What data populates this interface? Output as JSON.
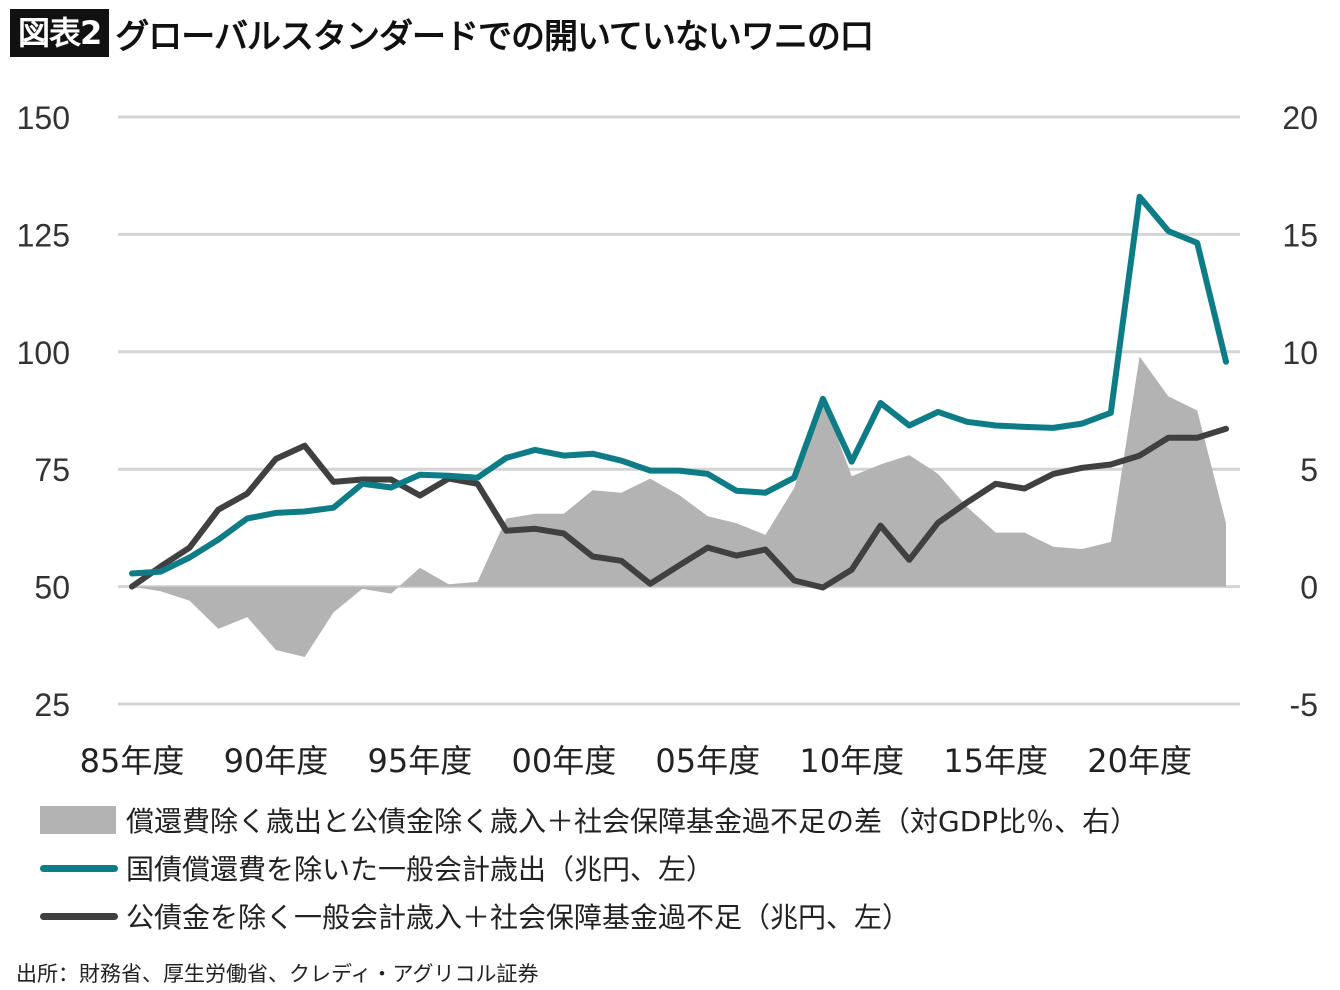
{
  "header": {
    "badge": "図表2",
    "title": "グローバルスタンダードでの開いていないワニの口"
  },
  "colors": {
    "expenditure": "#0e7c86",
    "revenue": "#404040",
    "gap": "#b3b3b3",
    "grid": "#d4d4d4",
    "negative_tick": "#e02020"
  },
  "chart_data": {
    "type": "line+area",
    "title": "グローバルスタンダードでの開いていないワニの口",
    "x": [
      1985,
      1986,
      1987,
      1988,
      1989,
      1990,
      1991,
      1992,
      1993,
      1994,
      1995,
      1996,
      1997,
      1998,
      1999,
      2000,
      2001,
      2002,
      2003,
      2004,
      2005,
      2006,
      2007,
      2008,
      2009,
      2010,
      2011,
      2012,
      2013,
      2014,
      2015,
      2016,
      2017,
      2018,
      2019,
      2020,
      2021,
      2022,
      2023
    ],
    "x_tick_values": [
      1985,
      1990,
      1995,
      2000,
      2005,
      2010,
      2015,
      2020
    ],
    "x_tick_labels": [
      "85年度",
      "90年度",
      "95年度",
      "00年度",
      "05年度",
      "10年度",
      "15年度",
      "20年度"
    ],
    "y_left": {
      "range": [
        25,
        150
      ],
      "ticks": [
        "150",
        "125",
        "100",
        "75",
        "50",
        "25"
      ],
      "tick_values": [
        150,
        125,
        100,
        75,
        50,
        25
      ]
    },
    "y_right": {
      "range": [
        -5,
        20
      ],
      "ticks": [
        "20",
        "15",
        "10",
        "5",
        "0",
        "-5"
      ],
      "tick_values": [
        20,
        15,
        10,
        5,
        0,
        -5
      ]
    },
    "grid": true,
    "legend_position": "bottom",
    "series": [
      {
        "name": "償還費除く歳出と公債金除く歳入＋社会保障基金過不足の差（対GDP比％、右）",
        "type": "area",
        "axis": "right",
        "values": [
          0,
          -0.2,
          -0.6,
          -1.8,
          -1.3,
          -2.7,
          -3.0,
          -1.1,
          -0.1,
          -0.3,
          0.8,
          0.1,
          0.2,
          2.9,
          3.1,
          3.1,
          4.1,
          4.0,
          4.6,
          3.9,
          3.0,
          2.7,
          2.2,
          4.2,
          8.0,
          4.7,
          5.2,
          5.6,
          4.8,
          3.4,
          2.3,
          2.3,
          1.7,
          1.6,
          1.9,
          9.8,
          8.1,
          7.5,
          2.7
        ]
      },
      {
        "name": "国債償還費を除いた一般会計歳出（兆円、左）",
        "type": "line",
        "axis": "left",
        "values": [
          52.8,
          53.2,
          56.2,
          60.0,
          64.5,
          65.7,
          66.0,
          66.8,
          71.9,
          71.1,
          73.8,
          73.6,
          73.2,
          77.4,
          79.1,
          77.9,
          78.3,
          76.8,
          74.7,
          74.7,
          74.0,
          70.4,
          70.0,
          73.2,
          90.0,
          76.6,
          89.1,
          84.3,
          87.2,
          85.1,
          84.3,
          84.0,
          83.8,
          84.7,
          87.0,
          133.0,
          125.7,
          123.2,
          97.9
        ]
      },
      {
        "name": "公債金を除く一般会計歳入＋社会保障基金過不足（兆円、左）",
        "type": "line",
        "axis": "left",
        "values": [
          50.0,
          54.3,
          58.3,
          66.4,
          69.8,
          77.2,
          80.0,
          72.3,
          72.8,
          72.8,
          69.4,
          73.0,
          71.9,
          61.9,
          62.3,
          61.3,
          56.4,
          55.5,
          50.6,
          54.5,
          58.3,
          56.6,
          57.9,
          51.3,
          49.8,
          53.6,
          63.0,
          55.7,
          63.6,
          67.9,
          71.9,
          70.9,
          74.0,
          75.3,
          76.0,
          77.9,
          81.7,
          81.7,
          83.6
        ]
      }
    ]
  },
  "legend": {
    "items": [
      "償還費除く歳出と公債金除く歳入＋社会保障基金過不足の差（対GDP比％、右）",
      "国債償還費を除いた一般会計歳出（兆円、左）",
      "公債金を除く一般会計歳入＋社会保障基金過不足（兆円、左）"
    ]
  },
  "source": "出所：財務省、厚生労働省、クレディ・アグリコル証券"
}
